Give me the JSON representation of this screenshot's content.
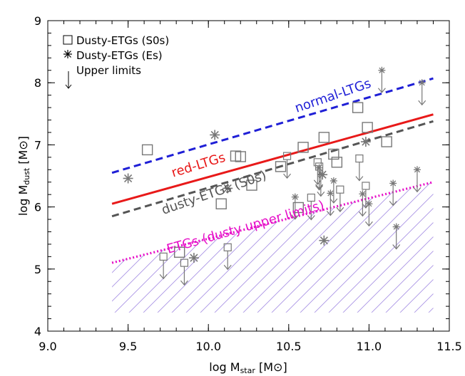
{
  "chart_data": {
    "type": "scatter",
    "xlabel": {
      "main": "log M",
      "sub": "star",
      "unit_open": " [M",
      "unit_close": "]"
    },
    "ylabel": {
      "main": "log M",
      "sub": "dust",
      "unit_open": " [M",
      "unit_close": "]"
    },
    "xlim": [
      9.0,
      11.5
    ],
    "ylim": [
      4,
      9
    ],
    "xticks": [
      {
        "value": 9.0,
        "label": "9.0"
      },
      {
        "value": 9.5,
        "label": "9.5"
      },
      {
        "value": 10.0,
        "label": "10.0"
      },
      {
        "value": 10.5,
        "label": "10.5"
      },
      {
        "value": 11.0,
        "label": "11.0"
      },
      {
        "value": 11.5,
        "label": "11.5"
      }
    ],
    "yticks": [
      {
        "value": 4,
        "label": "4"
      },
      {
        "value": 5,
        "label": "5"
      },
      {
        "value": 6,
        "label": "6"
      },
      {
        "value": 7,
        "label": "7"
      },
      {
        "value": 8,
        "label": "8"
      },
      {
        "value": 9,
        "label": "9"
      }
    ],
    "legend": {
      "placement": "top-left",
      "entries": [
        {
          "marker": "square",
          "label": "Dusty-ETGs (S0s)"
        },
        {
          "marker": "asterisk",
          "label": "Dusty-ETGs (Es)"
        },
        {
          "marker": "arrow",
          "label": "Upper limits"
        }
      ]
    },
    "shaded_region": {
      "description": "hatched region below dusty-ETG upper-limit line",
      "x_range": [
        9.4,
        11.4
      ],
      "y_bottom": 4.3,
      "color": "#9a80e0"
    },
    "lines": [
      {
        "name": "normal-LTGs",
        "label": "normal-LTGs",
        "color": "#1f1fd6",
        "style": "dashed",
        "x": [
          9.4,
          11.4
        ],
        "y": [
          6.55,
          8.07
        ],
        "label_pos": [
          10.55,
          7.52
        ],
        "label_angle": -19
      },
      {
        "name": "red-LTGs",
        "label": "red-LTGs",
        "color": "#e81919",
        "style": "solid",
        "x": [
          9.4,
          11.4
        ],
        "y": [
          6.05,
          7.49
        ],
        "label_pos": [
          9.78,
          6.48
        ],
        "label_angle": -17
      },
      {
        "name": "dusty-ETGs (S0s)",
        "label": "dusty-ETGs (S0s)",
        "color": "#555555",
        "style": "dashed",
        "x": [
          9.4,
          11.4
        ],
        "y": [
          5.85,
          7.38
        ],
        "label_pos": [
          9.72,
          5.88
        ],
        "label_angle": -19
      },
      {
        "name": "ETGs (dusty upper limits)",
        "label": "ETGs (dusty upper limits)",
        "color": "#e60ec8",
        "style": "dotted",
        "x": [
          9.4,
          11.4
        ],
        "y": [
          5.1,
          6.4
        ],
        "label_pos": [
          9.75,
          5.25
        ],
        "label_angle": -16
      }
    ],
    "series": [
      {
        "name": "Dusty-ETGs (S0s)",
        "marker": "square",
        "color": "#777777",
        "points": [
          [
            9.62,
            6.92
          ],
          [
            9.82,
            5.27
          ],
          [
            10.08,
            6.05
          ],
          [
            10.17,
            6.82
          ],
          [
            10.2,
            6.81
          ],
          [
            10.27,
            6.35
          ],
          [
            10.45,
            6.65
          ],
          [
            10.59,
            6.96
          ],
          [
            10.72,
            7.12
          ],
          [
            10.78,
            6.85
          ],
          [
            10.8,
            6.72
          ],
          [
            10.93,
            7.6
          ],
          [
            10.99,
            7.28
          ],
          [
            11.11,
            7.05
          ],
          [
            10.56,
            5.99
          ]
        ]
      },
      {
        "name": "Dusty-ETGs (Es)",
        "marker": "asterisk",
        "color": "#777777",
        "points": [
          [
            9.5,
            6.46
          ],
          [
            9.91,
            5.18
          ],
          [
            10.04,
            7.16
          ],
          [
            10.12,
            6.3
          ],
          [
            10.72,
            5.46
          ],
          [
            10.71,
            6.52
          ],
          [
            10.98,
            7.05
          ]
        ]
      },
      {
        "name": "Upper limits (squares)",
        "marker": "square-arrow",
        "color": "#777777",
        "points": [
          [
            9.72,
            5.2
          ],
          [
            9.85,
            5.1
          ],
          [
            10.12,
            5.35
          ],
          [
            10.49,
            6.82
          ],
          [
            10.64,
            6.15
          ],
          [
            10.68,
            6.72
          ],
          [
            10.69,
            6.65
          ],
          [
            10.82,
            6.28
          ],
          [
            10.94,
            6.78
          ],
          [
            10.98,
            6.34
          ]
        ]
      },
      {
        "name": "Upper limits (stars)",
        "marker": "asterisk-arrow",
        "color": "#777777",
        "points": [
          [
            10.54,
            6.16
          ],
          [
            10.69,
            6.63
          ],
          [
            10.7,
            6.53
          ],
          [
            10.76,
            6.22
          ],
          [
            10.78,
            6.42
          ],
          [
            10.96,
            6.21
          ],
          [
            11.0,
            6.05
          ],
          [
            11.08,
            8.2
          ],
          [
            11.15,
            6.38
          ],
          [
            11.17,
            5.68
          ],
          [
            11.3,
            6.6
          ],
          [
            11.33,
            8.0
          ]
        ]
      }
    ]
  }
}
